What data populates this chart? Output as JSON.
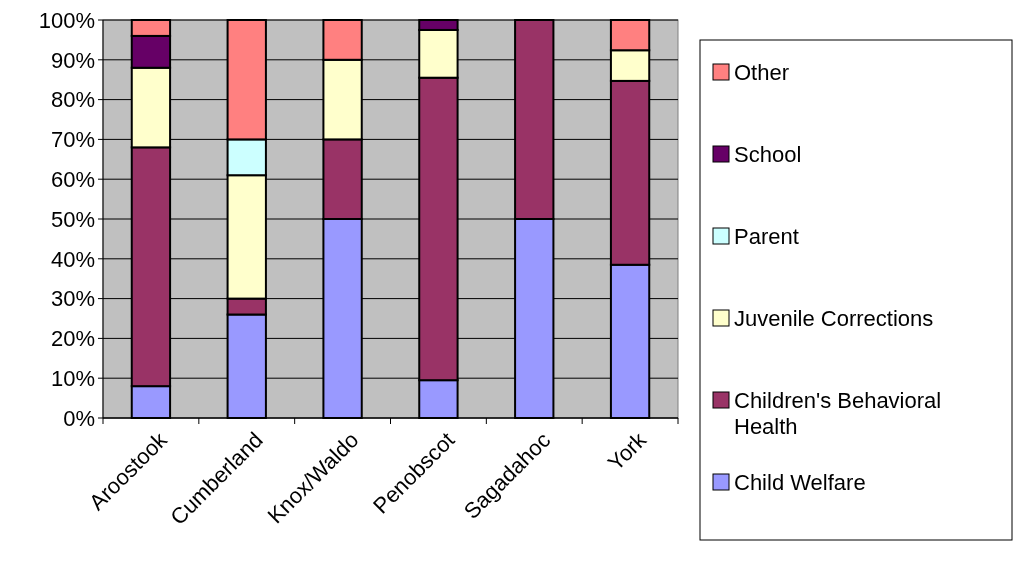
{
  "chart_data": {
    "type": "bar",
    "stacked": true,
    "categories": [
      "Aroostook",
      "Cumberland",
      "Knox/Waldo",
      "Penobscot",
      "Sagadahoc",
      "York"
    ],
    "series": [
      {
        "name": "Child Welfare",
        "color": "#9999ff",
        "values": [
          8,
          26,
          50,
          9.5,
          50,
          38.5
        ]
      },
      {
        "name": "Children's Behavioral Health",
        "color": "#993366",
        "values": [
          60,
          4,
          20,
          76,
          50,
          46.2
        ]
      },
      {
        "name": "Juvenile Corrections",
        "color": "#ffffcc",
        "values": [
          20,
          31,
          20,
          12,
          0,
          7.7
        ]
      },
      {
        "name": "Parent",
        "color": "#ccffff",
        "values": [
          0,
          9,
          0,
          0,
          0,
          0
        ]
      },
      {
        "name": "School",
        "color": "#660066",
        "values": [
          8,
          0,
          0,
          2.5,
          0,
          0
        ]
      },
      {
        "name": "Other",
        "color": "#ff8080",
        "values": [
          4,
          30,
          10,
          0,
          0,
          7.6
        ]
      }
    ],
    "ylim": [
      0,
      100
    ],
    "yticks": [
      {
        "value": 0,
        "label": "0%"
      },
      {
        "value": 10,
        "label": "10%"
      },
      {
        "value": 20,
        "label": "20%"
      },
      {
        "value": 30,
        "label": "30%"
      },
      {
        "value": 40,
        "label": "40%"
      },
      {
        "value": 50,
        "label": "50%"
      },
      {
        "value": 60,
        "label": "60%"
      },
      {
        "value": 70,
        "label": "70%"
      },
      {
        "value": 80,
        "label": "80%"
      },
      {
        "value": 90,
        "label": "90%"
      },
      {
        "value": 100,
        "label": "100%"
      }
    ],
    "grid": "y",
    "legend": "right"
  }
}
